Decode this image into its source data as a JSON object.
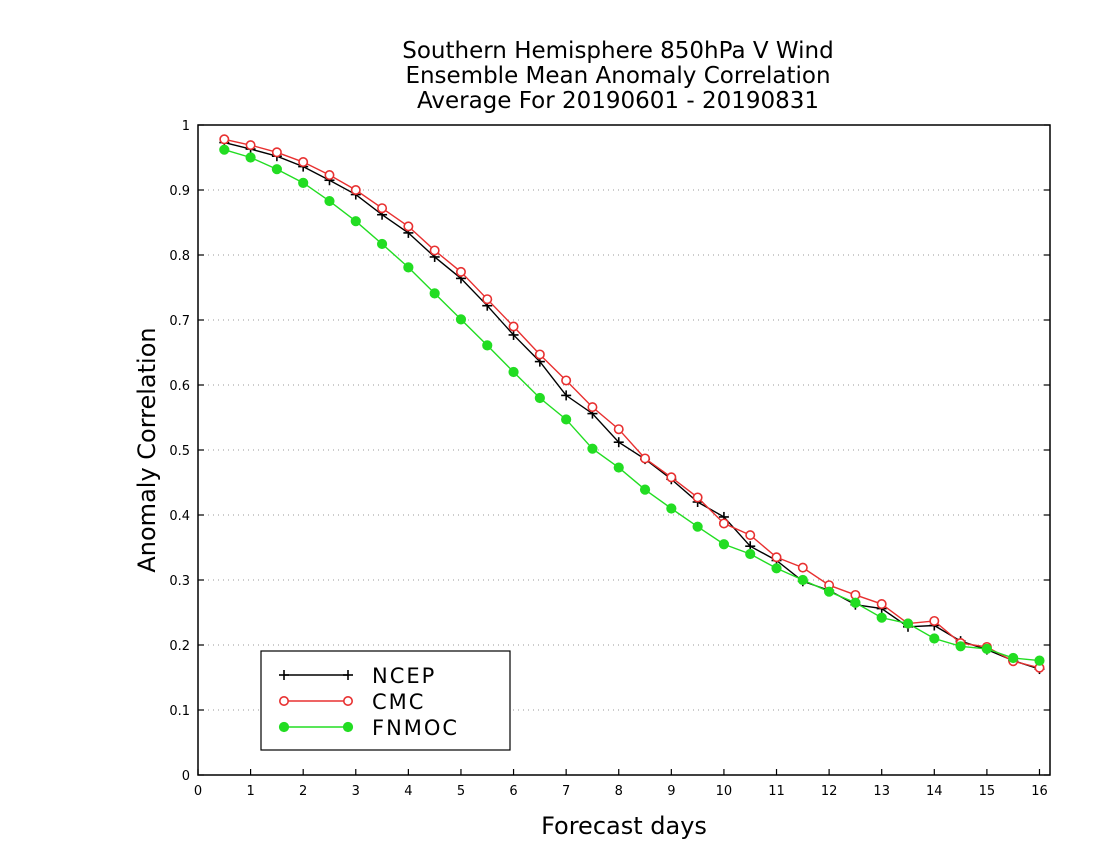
{
  "chart_data": {
    "type": "line",
    "title": [
      "Southern Hemisphere 850hPa V Wind",
      "Ensemble Mean Anomaly Correlation",
      "Average For 20190601 - 20190831"
    ],
    "xlabel": "Forecast days",
    "ylabel": "Anomaly Correlation",
    "xlim": [
      0,
      16.2
    ],
    "ylim": [
      0,
      1
    ],
    "x_ticks": [
      0,
      1,
      2,
      3,
      4,
      5,
      6,
      7,
      8,
      9,
      10,
      11,
      12,
      13,
      14,
      15,
      16
    ],
    "y_ticks": [
      0,
      0.1,
      0.2,
      0.3,
      0.4,
      0.5,
      0.6,
      0.7,
      0.8,
      0.9,
      1
    ],
    "grid": "horizontal dotted",
    "legend_position": "bottom-left",
    "x": [
      0.5,
      1,
      1.5,
      2,
      2.5,
      3,
      3.5,
      4,
      4.5,
      5,
      5.5,
      6,
      6.5,
      7,
      7.5,
      8,
      8.5,
      9,
      9.5,
      10,
      10.5,
      11,
      11.5,
      12,
      12.5,
      13,
      13.5,
      14,
      14.5,
      15,
      15.5,
      16
    ],
    "series": [
      {
        "name": "NCEP",
        "color": "#000000",
        "marker": "plus",
        "values": [
          0.973,
          0.963,
          0.952,
          0.936,
          0.915,
          0.893,
          0.862,
          0.834,
          0.797,
          0.764,
          0.722,
          0.677,
          0.636,
          0.584,
          0.556,
          0.512,
          0.486,
          0.455,
          0.42,
          0.397,
          0.352,
          0.33,
          0.298,
          0.284,
          0.262,
          0.256,
          0.228,
          0.23,
          0.206,
          0.193,
          0.176,
          0.163
        ]
      },
      {
        "name": "CMC",
        "color": "#e83030",
        "marker": "open-circle",
        "values": [
          0.978,
          0.969,
          0.958,
          0.943,
          0.923,
          0.9,
          0.872,
          0.844,
          0.807,
          0.774,
          0.732,
          0.69,
          0.647,
          0.607,
          0.566,
          0.532,
          0.487,
          0.458,
          0.427,
          0.387,
          0.369,
          0.335,
          0.319,
          0.292,
          0.277,
          0.263,
          0.233,
          0.237,
          0.203,
          0.197,
          0.175,
          0.165
        ]
      },
      {
        "name": "FNMOC",
        "color": "#22dd22",
        "marker": "filled-circle",
        "values": [
          0.962,
          0.95,
          0.932,
          0.911,
          0.883,
          0.852,
          0.817,
          0.781,
          0.741,
          0.701,
          0.661,
          0.62,
          0.58,
          0.547,
          0.502,
          0.473,
          0.439,
          0.41,
          0.382,
          0.355,
          0.34,
          0.318,
          0.3,
          0.282,
          0.265,
          0.242,
          0.233,
          0.21,
          0.198,
          0.194,
          0.18,
          0.176
        ]
      }
    ]
  }
}
